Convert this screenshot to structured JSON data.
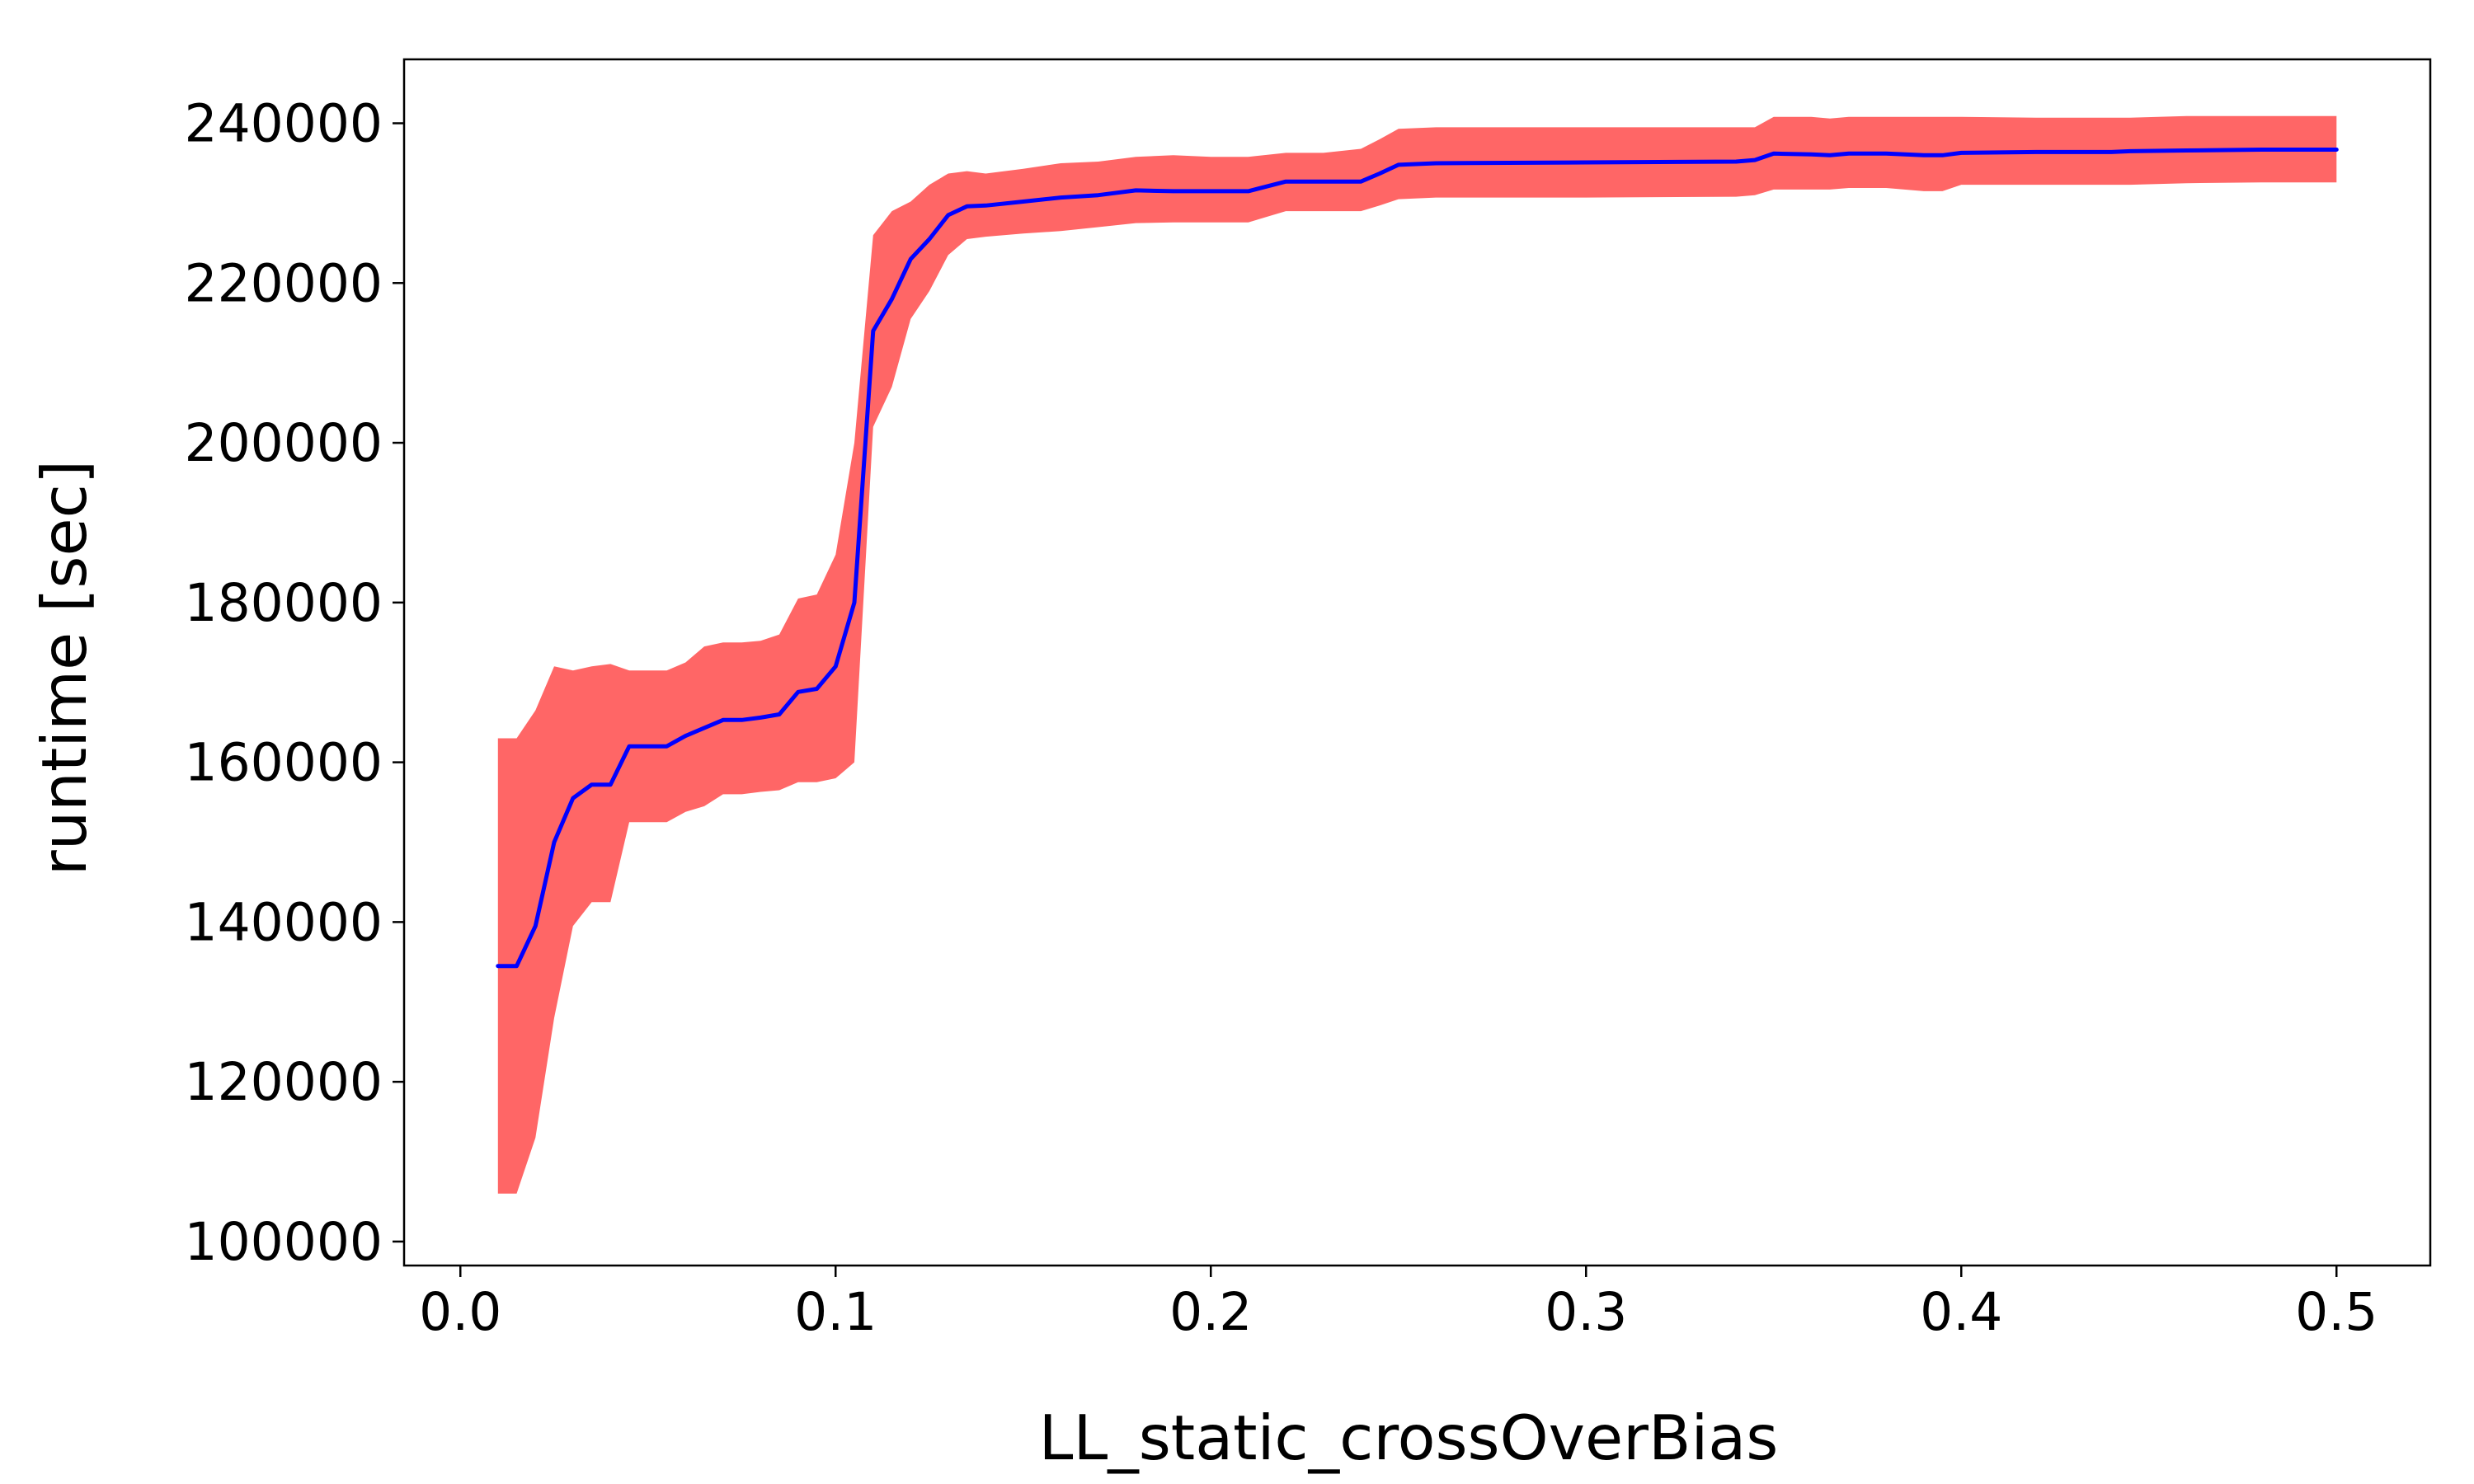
{
  "chart_data": {
    "type": "line",
    "title": "",
    "xlabel": "LL_static_crossOverBias",
    "ylabel": "runtime [sec]",
    "xlim": [
      -0.015,
      0.525
    ],
    "ylim": [
      97000,
      248000
    ],
    "grid": false,
    "xticks": [
      0.0,
      0.1,
      0.2,
      0.3,
      0.4,
      0.5
    ],
    "xtick_labels": [
      "0.0",
      "0.1",
      "0.2",
      "0.3",
      "0.4",
      "0.5"
    ],
    "yticks": [
      100000,
      120000,
      140000,
      160000,
      180000,
      200000,
      220000,
      240000
    ],
    "ytick_labels": [
      "100000",
      "120000",
      "140000",
      "160000",
      "180000",
      "200000",
      "220000",
      "240000"
    ],
    "colors": {
      "mean_line": "#0000ff",
      "band_fill": "#ff6666"
    },
    "series": [
      {
        "role": "mean",
        "x": [
          0.01,
          0.015,
          0.02,
          0.025,
          0.03,
          0.035,
          0.04,
          0.045,
          0.05,
          0.055,
          0.06,
          0.065,
          0.07,
          0.075,
          0.08,
          0.085,
          0.09,
          0.095,
          0.1,
          0.105,
          0.11,
          0.115,
          0.12,
          0.125,
          0.13,
          0.135,
          0.14,
          0.15,
          0.16,
          0.17,
          0.18,
          0.19,
          0.2,
          0.21,
          0.22,
          0.23,
          0.24,
          0.245,
          0.25,
          0.26,
          0.3,
          0.34,
          0.345,
          0.35,
          0.36,
          0.365,
          0.37,
          0.38,
          0.39,
          0.395,
          0.4,
          0.42,
          0.44,
          0.445,
          0.46,
          0.48,
          0.5
        ],
        "values": [
          134500,
          134500,
          139500,
          150000,
          155500,
          157200,
          157200,
          162000,
          162000,
          162000,
          163300,
          164300,
          165300,
          165300,
          165600,
          166000,
          168800,
          169200,
          172000,
          180000,
          214000,
          218000,
          223000,
          225500,
          228500,
          229600,
          229700,
          230200,
          230700,
          231000,
          231600,
          231500,
          231500,
          231500,
          232700,
          232700,
          232700,
          233700,
          234800,
          235000,
          235100,
          235200,
          235400,
          236200,
          236100,
          236000,
          236200,
          236200,
          236000,
          236000,
          236300,
          236400,
          236400,
          236500,
          236600,
          236700,
          236700
        ]
      },
      {
        "role": "upper",
        "x": [
          0.01,
          0.015,
          0.02,
          0.025,
          0.03,
          0.035,
          0.04,
          0.045,
          0.05,
          0.055,
          0.06,
          0.065,
          0.07,
          0.075,
          0.08,
          0.085,
          0.09,
          0.095,
          0.1,
          0.105,
          0.11,
          0.115,
          0.12,
          0.125,
          0.13,
          0.135,
          0.14,
          0.15,
          0.16,
          0.17,
          0.18,
          0.19,
          0.2,
          0.21,
          0.22,
          0.23,
          0.24,
          0.245,
          0.25,
          0.26,
          0.3,
          0.34,
          0.345,
          0.35,
          0.36,
          0.365,
          0.37,
          0.38,
          0.39,
          0.395,
          0.4,
          0.42,
          0.44,
          0.445,
          0.46,
          0.48,
          0.5
        ],
        "values": [
          163000,
          163000,
          166500,
          172000,
          171500,
          172000,
          172300,
          171500,
          171500,
          171500,
          172500,
          174500,
          175000,
          175000,
          175200,
          176000,
          180500,
          181000,
          186000,
          200000,
          226000,
          229000,
          230200,
          232300,
          233700,
          234000,
          233700,
          234300,
          235000,
          235200,
          235800,
          236000,
          235800,
          235800,
          236300,
          236300,
          236800,
          238000,
          239300,
          239500,
          239500,
          239500,
          239500,
          240800,
          240800,
          240600,
          240800,
          240800,
          240800,
          240800,
          240800,
          240700,
          240700,
          240700,
          240900,
          240900,
          240900
        ]
      },
      {
        "role": "lower",
        "x": [
          0.01,
          0.015,
          0.02,
          0.025,
          0.03,
          0.035,
          0.04,
          0.045,
          0.05,
          0.055,
          0.06,
          0.065,
          0.07,
          0.075,
          0.08,
          0.085,
          0.09,
          0.095,
          0.1,
          0.105,
          0.11,
          0.115,
          0.12,
          0.125,
          0.13,
          0.135,
          0.14,
          0.15,
          0.16,
          0.17,
          0.18,
          0.19,
          0.2,
          0.21,
          0.22,
          0.23,
          0.24,
          0.245,
          0.25,
          0.26,
          0.3,
          0.34,
          0.345,
          0.35,
          0.36,
          0.365,
          0.37,
          0.38,
          0.39,
          0.395,
          0.4,
          0.42,
          0.44,
          0.445,
          0.46,
          0.48,
          0.5
        ],
        "values": [
          106000,
          106000,
          113000,
          128000,
          139500,
          142500,
          142500,
          152500,
          152500,
          152500,
          153800,
          154500,
          156000,
          156000,
          156300,
          156500,
          157500,
          157500,
          158000,
          160000,
          202000,
          207000,
          215500,
          219000,
          223500,
          225500,
          225800,
          226200,
          226500,
          227000,
          227500,
          227600,
          227600,
          227600,
          229000,
          229000,
          229000,
          229700,
          230500,
          230700,
          230700,
          230800,
          231000,
          231700,
          231700,
          231700,
          231900,
          231900,
          231500,
          231500,
          232300,
          232300,
          232300,
          232300,
          232500,
          232600,
          232600
        ]
      }
    ]
  }
}
